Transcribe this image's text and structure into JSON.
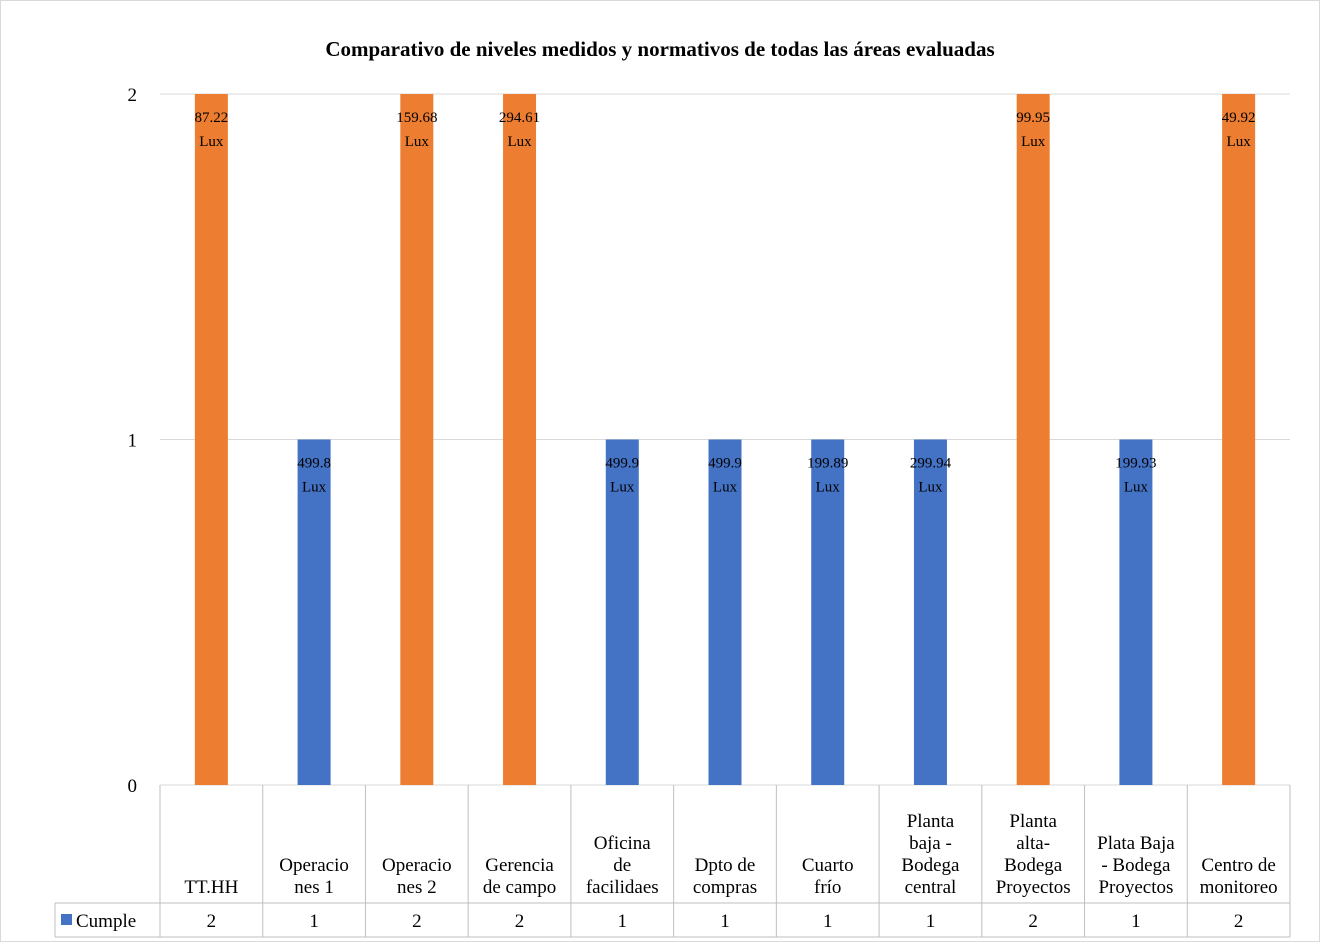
{
  "chart_data": {
    "type": "bar",
    "title": "Comparativo de niveles medidos y normativos de todas las áreas evaluadas",
    "categories": [
      "TT.HH",
      "Operaciones 1",
      "Operaciones 2",
      "Gerencia de campo",
      "Oficina de facilidaes",
      "Dpto de compras",
      "Cuarto frío",
      "Planta baja - Bodega central",
      "Planta alta-Bodega Proyectos",
      "Plata Baja - Bodega Proyectos",
      "Centro de monitoreo"
    ],
    "category_label_lines": [
      [
        "TT.HH"
      ],
      [
        "Operacio",
        "nes 1"
      ],
      [
        "Operacio",
        "nes 2"
      ],
      [
        "Gerencia",
        "de campo"
      ],
      [
        "Oficina",
        "de",
        "facilidaes"
      ],
      [
        "Dpto de",
        "compras"
      ],
      [
        "Cuarto",
        "frío"
      ],
      [
        "Planta",
        "baja -",
        "Bodega",
        "central"
      ],
      [
        "Planta",
        "alta-",
        "Bodega",
        "Proyectos"
      ],
      [
        "Plata Baja",
        "- Bodega",
        "Proyectos"
      ],
      [
        "Centro de",
        "monitoreo"
      ]
    ],
    "series": [
      {
        "name": "Cumple",
        "values": [
          2,
          1,
          2,
          2,
          1,
          1,
          1,
          1,
          2,
          1,
          2
        ],
        "data_labels": [
          "87.22",
          "499.8",
          "159.68",
          "294.61",
          "499.9",
          "499.9",
          "199.89",
          "299.94",
          "99.95",
          "199.93",
          "49.92"
        ],
        "data_label_unit": "Lux",
        "bar_colors": [
          "#ED7D31",
          "#4472C4",
          "#ED7D31",
          "#ED7D31",
          "#4472C4",
          "#4472C4",
          "#4472C4",
          "#4472C4",
          "#ED7D31",
          "#4472C4",
          "#ED7D31"
        ]
      }
    ],
    "ylim": [
      0,
      2
    ],
    "yticks": [
      "0",
      "1",
      "2"
    ],
    "grid": true,
    "legend_in_data_table": true,
    "colors": {
      "legend_swatch": "#4472C4",
      "orange": "#ED7D31",
      "blue": "#4472C4",
      "grid": "#D9D9D9",
      "table_border": "#BFBFBF",
      "text": "#000000"
    }
  }
}
